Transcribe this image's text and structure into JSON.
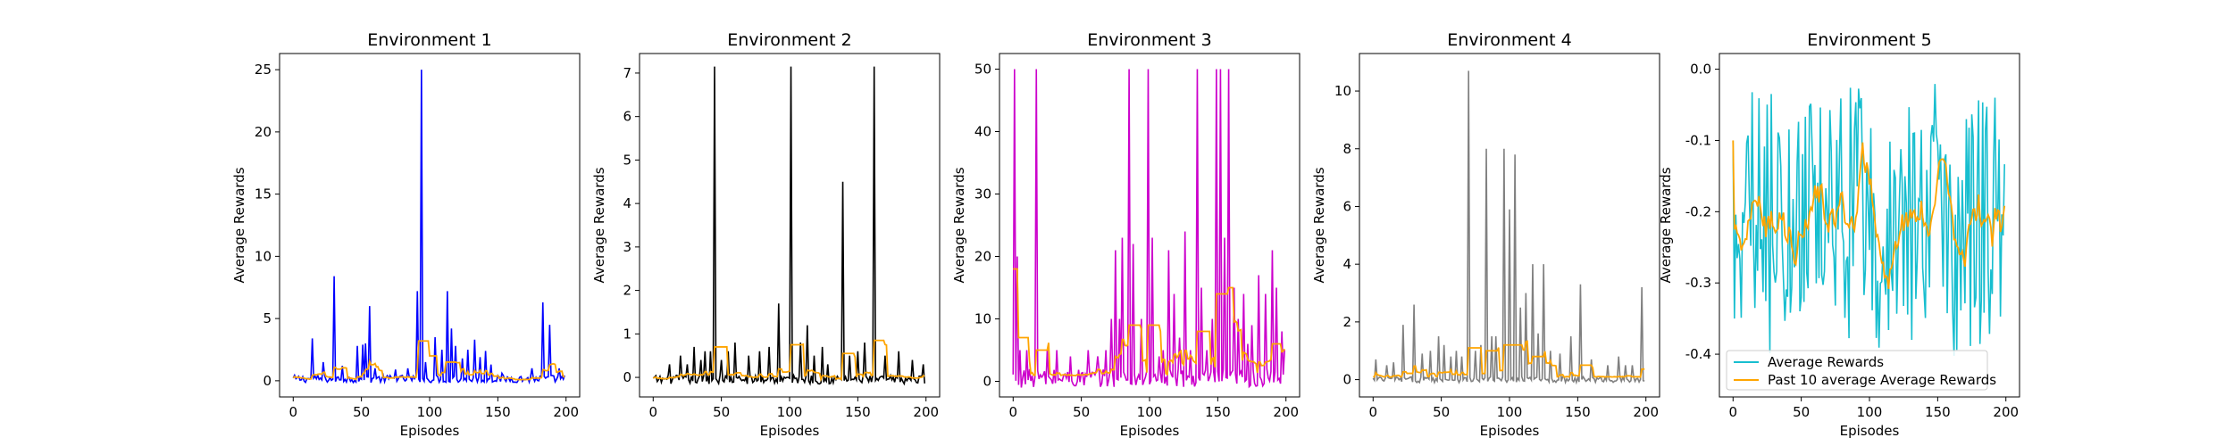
{
  "chart_data": [
    {
      "type": "line",
      "title": "Environment 1",
      "xlabel": "Episodes",
      "ylabel": "Average Rewards",
      "xlim": [
        -10,
        210
      ],
      "ylim": [
        -1.3,
        26.3
      ],
      "xticks": [
        0,
        50,
        100,
        150,
        200
      ],
      "yticks": [
        0,
        5,
        10,
        15,
        20,
        25
      ],
      "raw_color": "#0000ff",
      "avg_color": "#ffa500",
      "spikes": [
        [
          14,
          3.4
        ],
        [
          22,
          1.5
        ],
        [
          30,
          8.4
        ],
        [
          36,
          1.2
        ],
        [
          47,
          2.8
        ],
        [
          51,
          2.9
        ],
        [
          53,
          3.0
        ],
        [
          56,
          6.0
        ],
        [
          60,
          1.0
        ],
        [
          75,
          0.9
        ],
        [
          84,
          1.0
        ],
        [
          91,
          7.2
        ],
        [
          94,
          25.0
        ],
        [
          97,
          1.5
        ],
        [
          104,
          3.5
        ],
        [
          109,
          2.5
        ],
        [
          113,
          7.2
        ],
        [
          116,
          4.2
        ],
        [
          119,
          2.8
        ],
        [
          124,
          1.8
        ],
        [
          128,
          2.5
        ],
        [
          133,
          3.3
        ],
        [
          137,
          1.9
        ],
        [
          141,
          2.4
        ],
        [
          145,
          1.3
        ],
        [
          153,
          0.6
        ],
        [
          175,
          1.0
        ],
        [
          183,
          6.3
        ],
        [
          188,
          4.5
        ],
        [
          195,
          1.0
        ]
      ],
      "base": [
        0.15,
        0.3
      ],
      "avg_floor": 0.1,
      "avg_extra": [
        [
          92,
          100,
          3.2
        ],
        [
          100,
          106,
          2.0
        ],
        [
          112,
          120,
          1.5
        ]
      ]
    },
    {
      "type": "line",
      "title": "Environment 2",
      "xlabel": "Episodes",
      "ylabel": "Average Rewards",
      "xlim": [
        -10,
        210
      ],
      "ylim": [
        -0.45,
        7.45
      ],
      "xticks": [
        0,
        50,
        100,
        150,
        200
      ],
      "yticks": [
        0,
        1,
        2,
        3,
        4,
        5,
        6,
        7
      ],
      "raw_color": "#000000",
      "avg_color": "#ffa500",
      "spikes": [
        [
          12,
          0.3
        ],
        [
          20,
          0.5
        ],
        [
          25,
          0.3
        ],
        [
          30,
          0.7
        ],
        [
          35,
          0.4
        ],
        [
          38,
          0.6
        ],
        [
          42,
          0.6
        ],
        [
          45,
          7.15
        ],
        [
          50,
          0.4
        ],
        [
          55,
          0.6
        ],
        [
          60,
          0.8
        ],
        [
          70,
          0.5
        ],
        [
          78,
          0.6
        ],
        [
          85,
          0.7
        ],
        [
          92,
          1.7
        ],
        [
          101,
          7.15
        ],
        [
          108,
          0.8
        ],
        [
          113,
          1.2
        ],
        [
          118,
          0.5
        ],
        [
          124,
          0.7
        ],
        [
          128,
          0.3
        ],
        [
          139,
          4.5
        ],
        [
          144,
          0.5
        ],
        [
          150,
          0.6
        ],
        [
          155,
          0.8
        ],
        [
          162,
          7.15
        ],
        [
          170,
          0.5
        ],
        [
          180,
          0.6
        ],
        [
          190,
          0.4
        ],
        [
          198,
          0.3
        ]
      ],
      "base": [
        -0.05,
        0.1
      ],
      "avg_floor": -0.05,
      "avg_extra": [
        [
          45,
          55,
          0.7
        ],
        [
          101,
          110,
          0.75
        ],
        [
          139,
          148,
          0.55
        ],
        [
          162,
          170,
          0.85
        ]
      ]
    },
    {
      "type": "line",
      "title": "Environment 3",
      "xlabel": "Episodes",
      "ylabel": "Average Rewards",
      "xlim": [
        -10,
        210
      ],
      "ylim": [
        -2.5,
        52.5
      ],
      "xticks": [
        0,
        50,
        100,
        150,
        200
      ],
      "yticks": [
        0,
        10,
        20,
        30,
        40,
        50
      ],
      "raw_color": "#cc00cc",
      "avg_color": "#ffa500",
      "spikes": [
        [
          1,
          50
        ],
        [
          3,
          20
        ],
        [
          5,
          5
        ],
        [
          10,
          5
        ],
        [
          17,
          50
        ],
        [
          25,
          5
        ],
        [
          32,
          5
        ],
        [
          42,
          4
        ],
        [
          55,
          5
        ],
        [
          62,
          4
        ],
        [
          68,
          5
        ],
        [
          72,
          10
        ],
        [
          75,
          21
        ],
        [
          78,
          10
        ],
        [
          80,
          23
        ],
        [
          85,
          50
        ],
        [
          88,
          22
        ],
        [
          94,
          10
        ],
        [
          99,
          50
        ],
        [
          102,
          23
        ],
        [
          107,
          4
        ],
        [
          110,
          5
        ],
        [
          114,
          21
        ],
        [
          118,
          14
        ],
        [
          122,
          7
        ],
        [
          126,
          24
        ],
        [
          130,
          5
        ],
        [
          135,
          50
        ],
        [
          138,
          15
        ],
        [
          142,
          5
        ],
        [
          146,
          10
        ],
        [
          149,
          50
        ],
        [
          152,
          50
        ],
        [
          155,
          23
        ],
        [
          158,
          50
        ],
        [
          162,
          15
        ],
        [
          165,
          10
        ],
        [
          169,
          14
        ],
        [
          172,
          6
        ],
        [
          175,
          9
        ],
        [
          180,
          17
        ],
        [
          185,
          14
        ],
        [
          190,
          21
        ],
        [
          193,
          15
        ],
        [
          197,
          8
        ],
        [
          199,
          5
        ]
      ],
      "base": [
        0.5,
        1.5
      ],
      "avg_floor": 1.0,
      "avg_extra": [
        [
          0,
          4,
          18
        ],
        [
          4,
          12,
          7
        ],
        [
          17,
          26,
          5
        ],
        [
          85,
          94,
          9
        ],
        [
          99,
          108,
          9
        ],
        [
          135,
          145,
          8
        ],
        [
          149,
          158,
          14
        ],
        [
          158,
          162,
          15
        ],
        [
          190,
          197,
          6
        ]
      ]
    },
    {
      "type": "line",
      "title": "Environment 4",
      "xlabel": "Episodes",
      "ylabel": "Average Rewards",
      "xlim": [
        -10,
        210
      ],
      "ylim": [
        -0.6,
        11.3
      ],
      "xticks": [
        0,
        50,
        100,
        150,
        200
      ],
      "yticks": [
        0,
        2,
        4,
        6,
        8,
        10
      ],
      "raw_color": "#808080",
      "avg_color": "#ffa500",
      "spikes": [
        [
          2,
          0.7
        ],
        [
          10,
          0.5
        ],
        [
          15,
          0.6
        ],
        [
          22,
          1.9
        ],
        [
          30,
          2.6
        ],
        [
          36,
          0.9
        ],
        [
          42,
          1.0
        ],
        [
          48,
          1.5
        ],
        [
          52,
          1.2
        ],
        [
          57,
          0.8
        ],
        [
          61,
          1.0
        ],
        [
          65,
          0.8
        ],
        [
          70,
          10.7
        ],
        [
          75,
          1.0
        ],
        [
          79,
          1.2
        ],
        [
          83,
          8.0
        ],
        [
          87,
          1.5
        ],
        [
          90,
          1.5
        ],
        [
          96,
          8.0
        ],
        [
          100,
          5.9
        ],
        [
          104,
          7.8
        ],
        [
          108,
          2.5
        ],
        [
          112,
          3.0
        ],
        [
          117,
          4.0
        ],
        [
          121,
          1.6
        ],
        [
          125,
          4.0
        ],
        [
          130,
          1.0
        ],
        [
          137,
          0.9
        ],
        [
          145,
          1.5
        ],
        [
          152,
          3.3
        ],
        [
          160,
          0.7
        ],
        [
          172,
          0.5
        ],
        [
          180,
          0.8
        ],
        [
          185,
          0.5
        ],
        [
          190,
          0.5
        ],
        [
          197,
          3.2
        ]
      ],
      "base": [
        0.0,
        0.1
      ],
      "avg_floor": 0.1,
      "avg_extra": [
        [
          70,
          80,
          1.1
        ],
        [
          83,
          92,
          1.0
        ],
        [
          96,
          110,
          1.2
        ],
        [
          117,
          126,
          0.8
        ],
        [
          152,
          161,
          0.5
        ]
      ]
    },
    {
      "type": "line",
      "title": "Environment 5",
      "xlabel": "Episodes",
      "ylabel": "Average Rewards",
      "xlim": [
        -10,
        210
      ],
      "ylim": [
        -0.46,
        0.022
      ],
      "xticks": [
        0,
        50,
        100,
        150,
        200
      ],
      "yticks": [
        0.0,
        -0.1,
        -0.2,
        -0.3,
        -0.4
      ],
      "raw_color": "#17becf",
      "avg_color": "#ffa500",
      "noisy_range": [
        -0.41,
        -0.02
      ],
      "legend": {
        "position": "lower-left",
        "entries": [
          "Average Rewards",
          "Past 10 average Average Rewards"
        ]
      }
    }
  ]
}
